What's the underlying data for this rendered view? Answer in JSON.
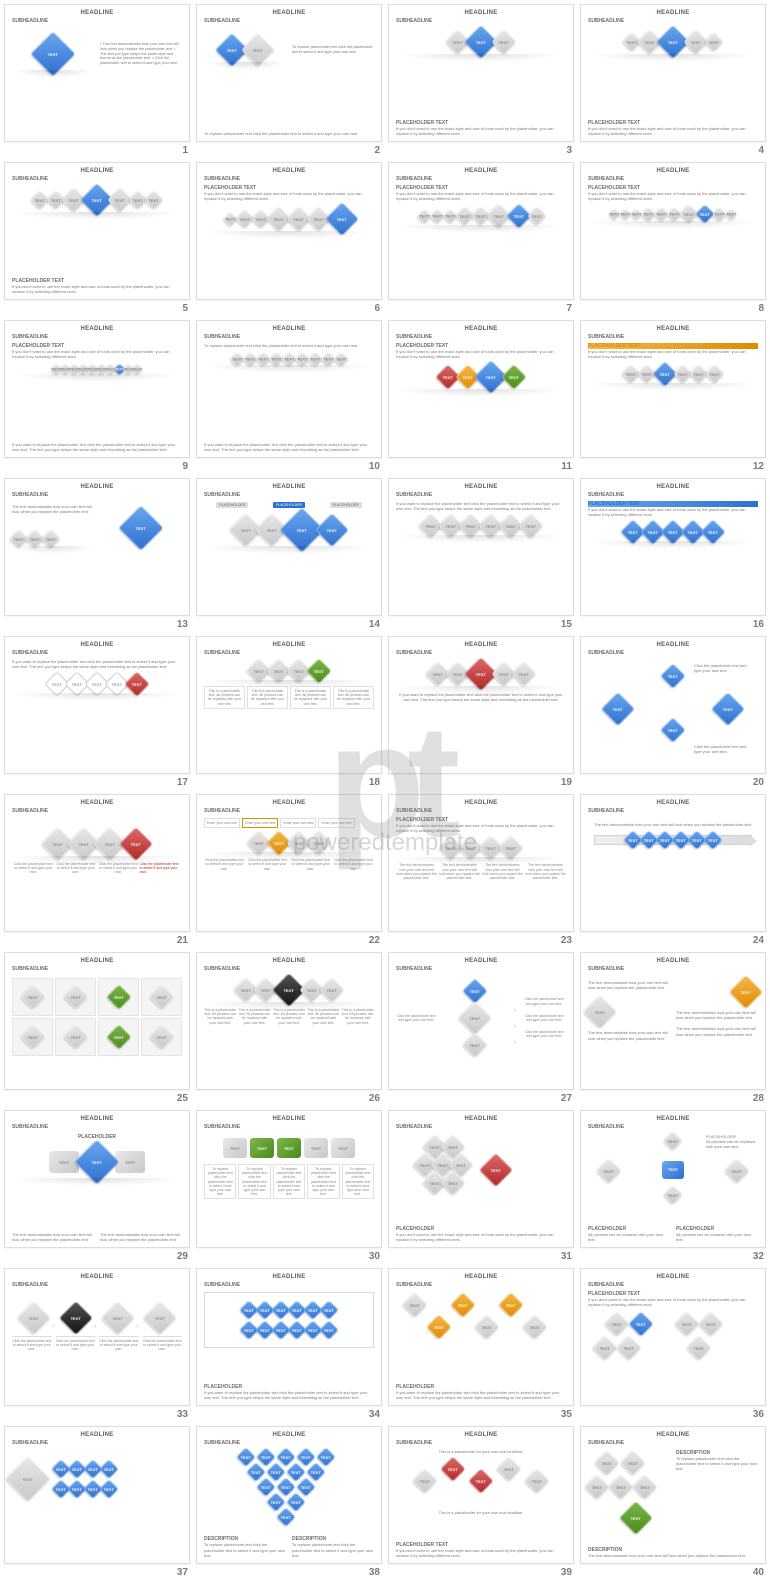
{
  "common": {
    "headline": "HEADLINE",
    "subheadline": "SUBHEADLINE",
    "placeholder_title": "PLACEHOLDER TEXT",
    "placeholder_title_upper": "PLACEHOLDER",
    "description_title": "DESCRIPTION",
    "text_label": "TEXT",
    "placeholder_label": "PLACEHOLDER"
  },
  "watermark": {
    "logo": "pt",
    "text": "poweredtemplate"
  },
  "colors": {
    "blue": "#2d6fcf",
    "blue_light": "#6aa8f0",
    "grey": "#c8c8c8",
    "grey_light": "#e8e8e8",
    "red": "#b02828",
    "orange": "#e08a00",
    "green": "#4a8a1a",
    "black": "#111111",
    "text_grey": "#7a7a7a",
    "border": "#dcdcdc"
  },
  "body_texts": {
    "demonstrates": "The text demonstrates how your own text will look when you replace the placeholder text.",
    "bullet_list": "• This text demonstrates how your own text will look when you replace the placeholder text.\n• The text you type keeps the same style and format as the placeholder text.\n• Click the placeholder text to select it and type your own.",
    "to_replace": "To replace placeholder text click the placeholder text to select it and type your own text.",
    "if_dont_want": "If you don't want to use the exact style and size of fonts used by the placeholder, you can replace it by selecting different ones.",
    "if_want_replace": "If you want to replace the placeholder text click the placeholder text to select it and type your own text. The text you type keeps the same style and formatting as the placeholder text.",
    "this_is_ph": "This is a placeholder text. All phrases can be replaced with your own text.",
    "click_ph": "Click the placeholder text and type your own text.",
    "enter_own": "Enter your own text",
    "all_phrases": "All phrases can be replaced with your own text.",
    "sub_headline_ph": "This is a placeholder for your own sub headline.",
    "click_type": "Click the placeholder text to select it and type your own."
  },
  "slides": [
    {
      "num": 1,
      "diamonds": [
        {
          "c": "blue",
          "sz": "xl"
        }
      ],
      "right_body": "bullet_list"
    },
    {
      "num": 2,
      "diamonds": [
        {
          "c": "blue",
          "sz": "l"
        },
        {
          "c": "grey",
          "sz": "l"
        }
      ],
      "footer": "to_replace",
      "right_body": "to_replace"
    },
    {
      "num": 3,
      "diamonds": [
        {
          "c": "grey",
          "sz": "m"
        },
        {
          "c": "blue",
          "sz": "l"
        },
        {
          "c": "grey",
          "sz": "m"
        }
      ],
      "footer_title": "placeholder_title",
      "footer_body": "if_dont_want"
    },
    {
      "num": 4,
      "diamonds": [
        {
          "c": "grey",
          "sz": "s"
        },
        {
          "c": "grey",
          "sz": "m"
        },
        {
          "c": "blue",
          "sz": "l"
        },
        {
          "c": "grey",
          "sz": "m"
        },
        {
          "c": "grey",
          "sz": "s"
        }
      ],
      "footer_title": "placeholder_title",
      "footer_body": "if_dont_want"
    },
    {
      "num": 5,
      "diamonds": [
        {
          "c": "grey",
          "sz": "s"
        },
        {
          "c": "grey",
          "sz": "s"
        },
        {
          "c": "grey",
          "sz": "m"
        },
        {
          "c": "blue",
          "sz": "l"
        },
        {
          "c": "grey",
          "sz": "m"
        },
        {
          "c": "grey",
          "sz": "s"
        },
        {
          "c": "grey",
          "sz": "s"
        }
      ],
      "footer_title": "placeholder_title",
      "footer_body": "if_dont_want"
    },
    {
      "num": 6,
      "top_title": "placeholder_title",
      "top_body": "if_dont_want",
      "diamonds": [
        {
          "c": "grey",
          "sz": "xs"
        },
        {
          "c": "grey",
          "sz": "s"
        },
        {
          "c": "grey",
          "sz": "s"
        },
        {
          "c": "grey",
          "sz": "m"
        },
        {
          "c": "grey",
          "sz": "m"
        },
        {
          "c": "grey",
          "sz": "m"
        },
        {
          "c": "blue",
          "sz": "l"
        }
      ]
    },
    {
      "num": 7,
      "top_title": "placeholder_title",
      "top_body": "if_dont_want",
      "diamonds": [
        {
          "c": "grey",
          "sz": "xs"
        },
        {
          "c": "grey",
          "sz": "xs"
        },
        {
          "c": "grey",
          "sz": "xs"
        },
        {
          "c": "grey",
          "sz": "s"
        },
        {
          "c": "grey",
          "sz": "s"
        },
        {
          "c": "grey",
          "sz": "m"
        },
        {
          "c": "blue",
          "sz": "m"
        },
        {
          "c": "grey",
          "sz": "s"
        }
      ]
    },
    {
      "num": 8,
      "top_title": "placeholder_title",
      "top_body": "if_dont_want",
      "diamonds": [
        {
          "c": "grey",
          "sz": "xxs"
        },
        {
          "c": "grey",
          "sz": "xxs"
        },
        {
          "c": "grey",
          "sz": "xxs"
        },
        {
          "c": "grey",
          "sz": "xs"
        },
        {
          "c": "grey",
          "sz": "xs"
        },
        {
          "c": "grey",
          "sz": "xs"
        },
        {
          "c": "grey",
          "sz": "s"
        },
        {
          "c": "blue",
          "sz": "s"
        },
        {
          "c": "grey",
          "sz": "xs"
        },
        {
          "c": "grey",
          "sz": "xxs"
        }
      ]
    },
    {
      "num": 9,
      "top_title": "placeholder_title",
      "top_body": "if_dont_want",
      "diamonds_many_small": 10,
      "highlight_idx": 7,
      "footer_body": "if_want_replace"
    },
    {
      "num": 10,
      "top_body": "to_replace",
      "diamonds": [
        {
          "c": "grey",
          "sz": "xs"
        },
        {
          "c": "grey",
          "sz": "xs"
        },
        {
          "c": "grey",
          "sz": "xs"
        },
        {
          "c": "grey",
          "sz": "xs"
        },
        {
          "c": "grey",
          "sz": "xs"
        },
        {
          "c": "grey",
          "sz": "xs"
        },
        {
          "c": "grey",
          "sz": "xs"
        },
        {
          "c": "grey",
          "sz": "xs"
        },
        {
          "c": "grey",
          "sz": "xs"
        }
      ],
      "footer_body": "if_want_replace"
    },
    {
      "num": 11,
      "top_title": "placeholder_title",
      "top_body": "if_dont_want",
      "diamonds": [
        {
          "c": "red",
          "sz": "m"
        },
        {
          "c": "orange",
          "sz": "m"
        },
        {
          "c": "blue",
          "sz": "l"
        },
        {
          "c": "green",
          "sz": "m"
        }
      ]
    },
    {
      "num": 12,
      "top_title_orange": true,
      "top_title": "placeholder_title",
      "top_body": "if_dont_want",
      "diamonds": [
        {
          "c": "grey",
          "sz": "s"
        },
        {
          "c": "grey",
          "sz": "s"
        },
        {
          "c": "blue",
          "sz": "m"
        },
        {
          "c": "grey",
          "sz": "s"
        },
        {
          "c": "grey",
          "sz": "s"
        },
        {
          "c": "grey",
          "sz": "s"
        }
      ]
    },
    {
      "num": 13,
      "type": "split13"
    },
    {
      "num": 14,
      "type": "labels14"
    },
    {
      "num": 15,
      "top_body": "if_want_replace",
      "diamonds": [
        {
          "c": "grey",
          "sz": "m"
        },
        {
          "c": "grey",
          "sz": "m"
        },
        {
          "c": "grey",
          "sz": "m"
        },
        {
          "c": "grey",
          "sz": "m"
        },
        {
          "c": "grey",
          "sz": "m"
        },
        {
          "c": "grey",
          "sz": "m"
        }
      ]
    },
    {
      "num": 16,
      "top_title_blue": true,
      "top_title": "placeholder_title",
      "top_body": "if_dont_want",
      "diamonds": [
        {
          "c": "blue",
          "sz": "m"
        },
        {
          "c": "blue",
          "sz": "m"
        },
        {
          "c": "blue",
          "sz": "m"
        },
        {
          "c": "blue",
          "sz": "m"
        },
        {
          "c": "blue",
          "sz": "m"
        }
      ]
    },
    {
      "num": 17,
      "top_body": "if_want_replace",
      "diamonds": [
        {
          "c": "outline",
          "sz": "m"
        },
        {
          "c": "outline",
          "sz": "m"
        },
        {
          "c": "outline",
          "sz": "m"
        },
        {
          "c": "outline",
          "sz": "m"
        },
        {
          "c": "red",
          "sz": "m"
        }
      ]
    },
    {
      "num": 18,
      "type": "boxes18"
    },
    {
      "num": 19,
      "type": "slide19"
    },
    {
      "num": 20,
      "type": "slide20"
    },
    {
      "num": 21,
      "type": "slide21"
    },
    {
      "num": 22,
      "type": "slide22"
    },
    {
      "num": 23,
      "type": "slide23"
    },
    {
      "num": 24,
      "type": "slide24"
    },
    {
      "num": 25,
      "type": "slide25"
    },
    {
      "num": 26,
      "type": "slide26"
    },
    {
      "num": 27,
      "type": "slide27"
    },
    {
      "num": 28,
      "type": "slide28"
    },
    {
      "num": 29,
      "type": "slide29"
    },
    {
      "num": 30,
      "type": "slide30"
    },
    {
      "num": 31,
      "type": "slide31"
    },
    {
      "num": 32,
      "type": "slide32"
    },
    {
      "num": 33,
      "type": "slide33"
    },
    {
      "num": 34,
      "type": "slide34"
    },
    {
      "num": 35,
      "type": "slide35"
    },
    {
      "num": 36,
      "type": "slide36"
    },
    {
      "num": 37,
      "type": "slide37"
    },
    {
      "num": 38,
      "type": "slide38"
    },
    {
      "num": 39,
      "type": "slide39"
    },
    {
      "num": 40,
      "type": "slide40"
    }
  ]
}
